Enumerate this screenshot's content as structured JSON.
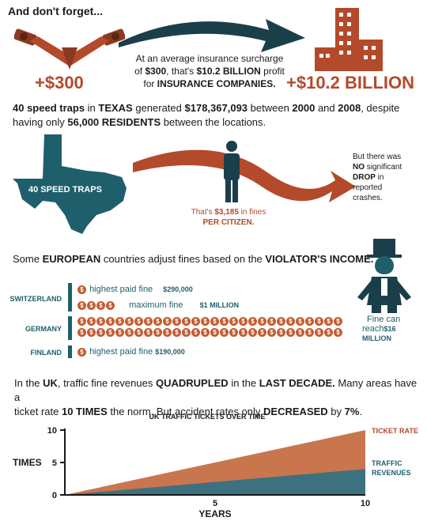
{
  "header": {
    "title": "And don't forget..."
  },
  "insurance": {
    "left_value": "+$300",
    "right_value": "+$10.2 BILLION",
    "line1": "At an average insurance surcharge",
    "line2_a": "of ",
    "line2_b": "$300",
    "line2_c": ", that's ",
    "line2_d": "$10.2 BILLION",
    "line2_e": " profit",
    "line3_a": "for ",
    "line3_b": "INSURANCE COMPANIES."
  },
  "texas": {
    "line1_a": "40 speed traps",
    "line1_b": " in ",
    "line1_c": "TEXAS",
    "line1_d": " generated ",
    "line1_e": "$178,367,093",
    "line1_f": " between ",
    "line1_g": "2000",
    "line1_h": " and ",
    "line1_i": "2008",
    "line1_j": ", despite",
    "line2_a": "having only ",
    "line2_b": "56,000 RESIDENTS",
    "line2_c": " between the locations.",
    "map_label": "40 SPEED TRAPS",
    "per_citizen_a": "That's ",
    "per_citizen_b": "$3,185",
    "per_citizen_c": " in fines",
    "per_citizen_d": "PER CITIZEN.",
    "drop_1": "But there was",
    "drop_2": "NO",
    "drop_3": " significant",
    "drop_4": "DROP",
    "drop_5": " in",
    "drop_6": "reported",
    "drop_7": "crashes."
  },
  "europe": {
    "line_a": "Some ",
    "line_b": "EUROPEAN",
    "line_c": " countries adjust fines based on the ",
    "line_d": "VIOLATOR'S INCOME.",
    "switzerland": "SWITZERLAND",
    "germany": "GERMANY",
    "finland": "FINLAND",
    "swiss_fine_label": "highest paid fine",
    "swiss_fine_value": "$290,000",
    "swiss_max_label": "maximum fine",
    "swiss_max_value": "$1 MILLION",
    "finland_fine_label": "highest paid fine",
    "finland_fine_value": "$190,000",
    "germany_label_1": "Fine can",
    "germany_label_2": "reach",
    "germany_label_3": "$16",
    "germany_label_4": "MILLION",
    "coin_symbol": "$"
  },
  "uk": {
    "line1_a": "In the ",
    "line1_b": "UK",
    "line1_c": ", traffic fine revenues ",
    "line1_d": "QUADRUPLED",
    "line1_e": " in the ",
    "line1_f": "LAST DECADE.",
    "line1_g": " Many areas have a",
    "line2_a": "ticket rate ",
    "line2_b": "10 TIMES",
    "line2_c": " the norm.  But accident rates only ",
    "line2_d": "DECREASED",
    "line2_e": " by ",
    "line2_f": "7%",
    "line2_g": "."
  },
  "chart_data": {
    "type": "area",
    "title": "UK TRAFFIC TICKETS OVER TIME",
    "xlabel": "YEARS",
    "ylabel": "TIMES",
    "x": [
      0,
      10
    ],
    "xticks": [
      "0",
      "5",
      "10"
    ],
    "yticks": [
      "0",
      "5",
      "10"
    ],
    "xlim": [
      0,
      10
    ],
    "ylim": [
      0,
      10
    ],
    "series": [
      {
        "name": "TICKET RATE",
        "values": [
          0,
          10
        ],
        "color": "#c9764f"
      },
      {
        "name": "TRAFFIC REVENUES",
        "values": [
          0,
          4
        ],
        "color": "#3e7180"
      }
    ]
  },
  "colors": {
    "rust": "#b34a2b",
    "teal": "#1f5f6b",
    "dark_teal": "#1a3f4a"
  }
}
